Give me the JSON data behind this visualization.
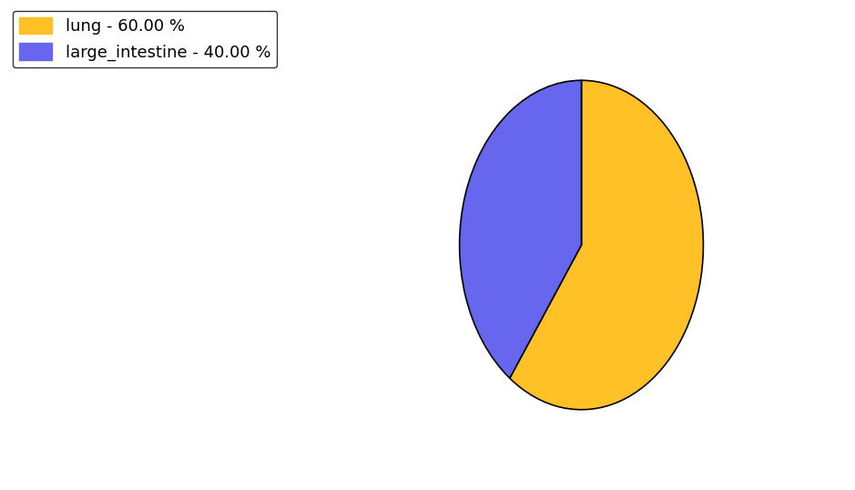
{
  "labels": [
    "lung",
    "large_intestine"
  ],
  "values": [
    60.0,
    40.0
  ],
  "colors": [
    "#FFC125",
    "#6666EE"
  ],
  "legend_labels": [
    "lung - 60.00 %",
    "large_intestine - 40.00 %"
  ],
  "figsize": [
    9.39,
    5.38
  ],
  "dpi": 100,
  "background_color": "#ffffff",
  "startangle": 90,
  "legend_fontsize": 13
}
